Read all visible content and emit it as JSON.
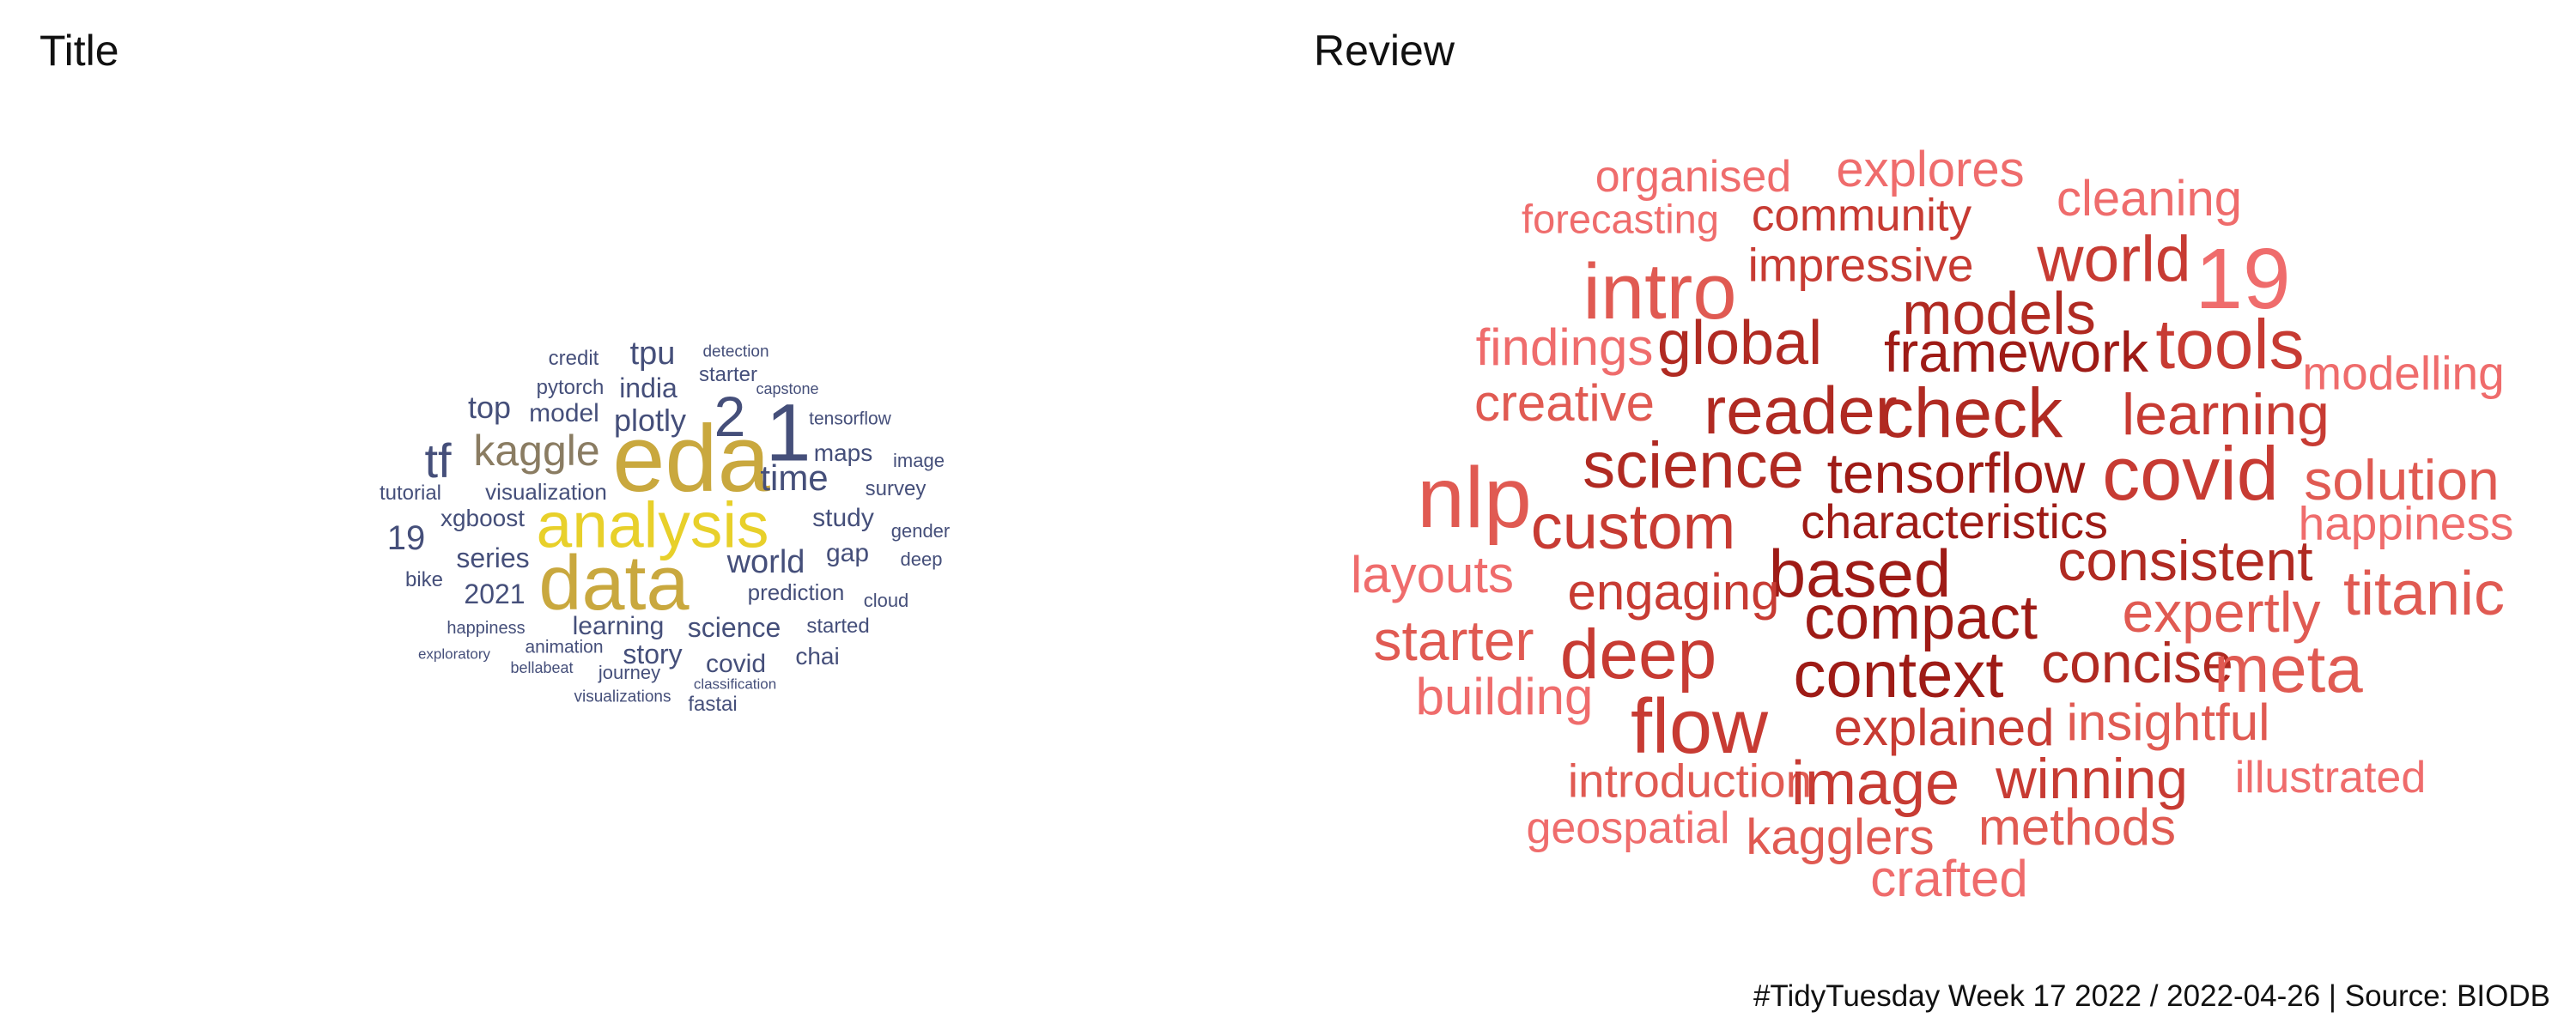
{
  "panels": {
    "left_title": "Title",
    "right_title": "Review"
  },
  "caption": "#TidyTuesday Week 17 2022 / 2022-04-26 | Source: BIODB",
  "colors": {
    "title_navy": "#454f7a",
    "title_gold": "#c9a83e",
    "title_yellow": "#e8d02a",
    "title_taupe": "#8a7c62",
    "review_dark_red": "#9e1b16",
    "review_red": "#c73b33",
    "review_light_red": "#ef6c6c"
  },
  "title_words": [
    {
      "text": "eda",
      "color": "#c9a83e"
    },
    {
      "text": "analysis",
      "color": "#e8d02a"
    },
    {
      "text": "data",
      "color": "#c9a83e"
    },
    {
      "text": "1",
      "color": "#454f7a"
    },
    {
      "text": "2",
      "color": "#454f7a"
    },
    {
      "text": "kaggle",
      "color": "#8a7c62"
    },
    {
      "text": "tf",
      "color": "#454f7a"
    },
    {
      "text": "time",
      "color": "#454f7a"
    },
    {
      "text": "tpu",
      "color": "#454f7a"
    },
    {
      "text": "plotly",
      "color": "#454f7a"
    },
    {
      "text": "india",
      "color": "#454f7a"
    },
    {
      "text": "top",
      "color": "#454f7a"
    },
    {
      "text": "model",
      "color": "#454f7a"
    },
    {
      "text": "credit",
      "color": "#454f7a"
    },
    {
      "text": "pytorch",
      "color": "#454f7a"
    },
    {
      "text": "starter",
      "color": "#454f7a"
    },
    {
      "text": "detection",
      "color": "#454f7a"
    },
    {
      "text": "capstone",
      "color": "#454f7a"
    },
    {
      "text": "tensorflow",
      "color": "#454f7a"
    },
    {
      "text": "maps",
      "color": "#454f7a"
    },
    {
      "text": "image",
      "color": "#454f7a"
    },
    {
      "text": "survey",
      "color": "#454f7a"
    },
    {
      "text": "study",
      "color": "#454f7a"
    },
    {
      "text": "gender",
      "color": "#454f7a"
    },
    {
      "text": "gap",
      "color": "#454f7a"
    },
    {
      "text": "deep",
      "color": "#454f7a"
    },
    {
      "text": "world",
      "color": "#454f7a"
    },
    {
      "text": "cloud",
      "color": "#454f7a"
    },
    {
      "text": "prediction",
      "color": "#454f7a"
    },
    {
      "text": "started",
      "color": "#454f7a"
    },
    {
      "text": "chai",
      "color": "#454f7a"
    },
    {
      "text": "science",
      "color": "#454f7a"
    },
    {
      "text": "learning",
      "color": "#454f7a"
    },
    {
      "text": "covid",
      "color": "#454f7a"
    },
    {
      "text": "story",
      "color": "#454f7a"
    },
    {
      "text": "journey",
      "color": "#454f7a"
    },
    {
      "text": "classification",
      "color": "#454f7a"
    },
    {
      "text": "fastai",
      "color": "#454f7a"
    },
    {
      "text": "visualizations",
      "color": "#454f7a"
    },
    {
      "text": "bellabeat",
      "color": "#454f7a"
    },
    {
      "text": "animation",
      "color": "#454f7a"
    },
    {
      "text": "exploratory",
      "color": "#454f7a"
    },
    {
      "text": "happiness",
      "color": "#454f7a"
    },
    {
      "text": "bike",
      "color": "#454f7a"
    },
    {
      "text": "2021",
      "color": "#454f7a"
    },
    {
      "text": "series",
      "color": "#454f7a"
    },
    {
      "text": "19",
      "color": "#454f7a"
    },
    {
      "text": "xgboost",
      "color": "#454f7a"
    },
    {
      "text": "tutorial",
      "color": "#454f7a"
    },
    {
      "text": "visualization",
      "color": "#454f7a"
    }
  ],
  "review_words": [
    {
      "text": "organised",
      "color": "#ef6c6c"
    },
    {
      "text": "explores",
      "color": "#ef6c6c"
    },
    {
      "text": "cleaning",
      "color": "#ef6c6c"
    },
    {
      "text": "forecasting",
      "color": "#ef6c6c"
    },
    {
      "text": "community",
      "color": "#c73b33"
    },
    {
      "text": "impressive",
      "color": "#c73b33"
    },
    {
      "text": "world",
      "color": "#c73b33"
    },
    {
      "text": "19",
      "color": "#ef6c6c"
    },
    {
      "text": "intro",
      "color": "#e05a52"
    },
    {
      "text": "models",
      "color": "#b02a22"
    },
    {
      "text": "global",
      "color": "#b02a22"
    },
    {
      "text": "framework",
      "color": "#9e1b16"
    },
    {
      "text": "tools",
      "color": "#c73b33"
    },
    {
      "text": "findings",
      "color": "#ef6c6c"
    },
    {
      "text": "modelling",
      "color": "#ef6c6c"
    },
    {
      "text": "creative",
      "color": "#e05a52"
    },
    {
      "text": "reader",
      "color": "#b02a22"
    },
    {
      "text": "check",
      "color": "#b02a22"
    },
    {
      "text": "learning",
      "color": "#c73b33"
    },
    {
      "text": "nlp",
      "color": "#e05a52"
    },
    {
      "text": "science",
      "color": "#b02a22"
    },
    {
      "text": "tensorflow",
      "color": "#9e1b16"
    },
    {
      "text": "covid",
      "color": "#c73b33"
    },
    {
      "text": "solution",
      "color": "#e05a52"
    },
    {
      "text": "custom",
      "color": "#c73b33"
    },
    {
      "text": "characteristics",
      "color": "#9e1b16"
    },
    {
      "text": "happiness",
      "color": "#ef6c6c"
    },
    {
      "text": "layouts",
      "color": "#ef6c6c"
    },
    {
      "text": "based",
      "color": "#9e1b16"
    },
    {
      "text": "consistent",
      "color": "#b02a22"
    },
    {
      "text": "engaging",
      "color": "#c73b33"
    },
    {
      "text": "titanic",
      "color": "#e05a52"
    },
    {
      "text": "compact",
      "color": "#9e1b16"
    },
    {
      "text": "starter",
      "color": "#e05a52"
    },
    {
      "text": "expertly",
      "color": "#e05a52"
    },
    {
      "text": "deep",
      "color": "#c73b33"
    },
    {
      "text": "context",
      "color": "#9e1b16"
    },
    {
      "text": "concise",
      "color": "#b02a22"
    },
    {
      "text": "meta",
      "color": "#e05a52"
    },
    {
      "text": "building",
      "color": "#ef6c6c"
    },
    {
      "text": "flow",
      "color": "#c73b33"
    },
    {
      "text": "explained",
      "color": "#c73b33"
    },
    {
      "text": "insightful",
      "color": "#e05a52"
    },
    {
      "text": "introduction",
      "color": "#e05a52"
    },
    {
      "text": "image",
      "color": "#c73b33"
    },
    {
      "text": "winning",
      "color": "#c73b33"
    },
    {
      "text": "illustrated",
      "color": "#ef6c6c"
    },
    {
      "text": "geospatial",
      "color": "#ef6c6c"
    },
    {
      "text": "kagglers",
      "color": "#e05a52"
    },
    {
      "text": "methods",
      "color": "#e05a52"
    },
    {
      "text": "crafted",
      "color": "#ef6c6c"
    }
  ]
}
